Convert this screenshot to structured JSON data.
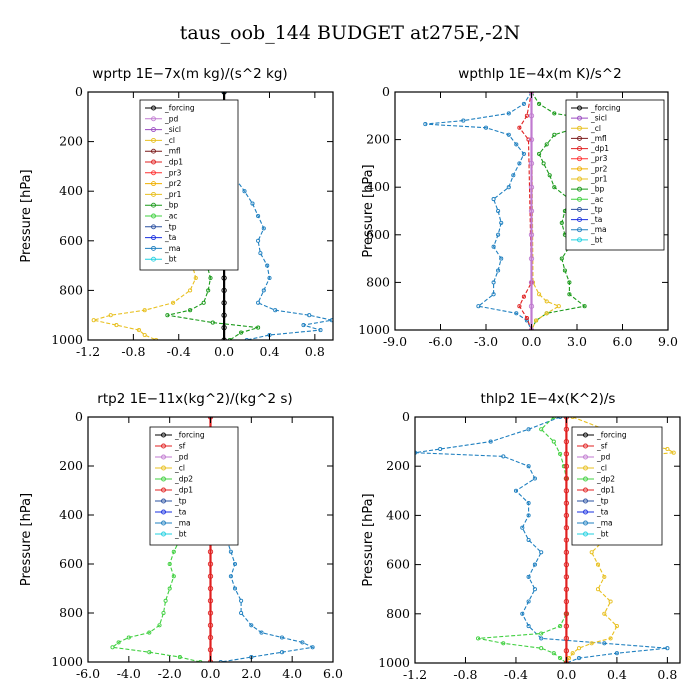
{
  "page_title": "taus_oob_144  BUDGET at275E,-2N",
  "chart_data": [
    {
      "type": "line",
      "title": "wprtp   1E−7x(m kg)/(s^2 kg)",
      "ylabel": "Pressure [hPa]",
      "xlim": [
        -1.2,
        0.96
      ],
      "ylim": [
        1000,
        0
      ],
      "xticks": [
        "-1.2",
        "-0.8",
        "-0.4",
        "0.0",
        "0.4",
        "0.8"
      ],
      "xtick_values": [
        -1.2,
        -0.8,
        -0.4,
        0.0,
        0.4,
        0.8
      ],
      "yticks": [
        "0",
        "200",
        "400",
        "600",
        "800",
        "1000"
      ],
      "ytick_values": [
        0,
        200,
        400,
        600,
        800,
        1000
      ],
      "legend": [
        "_forcing",
        "_pd",
        "_sicl",
        "_cl",
        "_mfl",
        "_dp1",
        "_pr3",
        "_pr2",
        "_pr1",
        "_bp",
        "_ac",
        "_tp",
        "_ta",
        "_ma",
        "_bt"
      ],
      "series": [
        {
          "name": "_pr1",
          "color": "#e8c020",
          "y": [
            0,
            150,
            250,
            300,
            350,
            400,
            450,
            500,
            550,
            600,
            650,
            700,
            750,
            800,
            850,
            880,
            900,
            920,
            940,
            960,
            980,
            1000
          ],
          "x": [
            0,
            0,
            -0.02,
            -0.05,
            -0.1,
            -0.15,
            -0.2,
            -0.17,
            -0.2,
            -0.25,
            -0.22,
            -0.28,
            -0.25,
            -0.3,
            -0.45,
            -0.7,
            -1.0,
            -1.15,
            -0.95,
            -0.75,
            -0.7,
            -0.6
          ]
        },
        {
          "name": "_bp",
          "color": "#1a9a1a",
          "y": [
            0,
            200,
            300,
            350,
            400,
            450,
            500,
            550,
            600,
            650,
            700,
            750,
            800,
            850,
            880,
            900,
            930,
            950,
            970,
            1000
          ],
          "x": [
            0,
            0,
            -0.02,
            -0.05,
            -0.12,
            -0.18,
            -0.12,
            -0.1,
            -0.15,
            -0.12,
            -0.15,
            -0.12,
            -0.14,
            -0.18,
            -0.3,
            -0.5,
            -0.1,
            0.3,
            0.15,
            0.05
          ]
        },
        {
          "name": "_ma",
          "color": "#2080c0",
          "y": [
            0,
            200,
            300,
            350,
            400,
            450,
            500,
            550,
            600,
            650,
            700,
            750,
            800,
            850,
            880,
            900,
            920,
            940,
            960,
            980,
            1000
          ],
          "x": [
            0,
            0,
            0.02,
            0.1,
            0.18,
            0.25,
            0.3,
            0.35,
            0.3,
            0.32,
            0.38,
            0.4,
            0.35,
            0.3,
            0.45,
            0.75,
            0.95,
            0.7,
            0.85,
            0.4,
            0.2
          ]
        },
        {
          "name": "_forcing",
          "color": "#000000",
          "y": [
            0,
            50,
            100,
            150,
            200,
            250,
            300,
            350,
            400,
            450,
            500,
            550,
            600,
            650,
            700,
            750,
            800,
            850,
            900,
            950,
            1000
          ],
          "x": [
            0,
            0,
            0,
            0,
            0,
            0,
            0,
            0,
            0,
            0,
            0,
            0,
            0,
            0,
            0,
            0,
            0,
            0,
            0,
            0,
            0
          ]
        }
      ]
    },
    {
      "type": "line",
      "title": "wpthlp   1E−4x(m K)/s^2",
      "ylabel": "Pressure [hPa]",
      "xlim": [
        -9.0,
        9.0
      ],
      "ylim": [
        1000,
        0
      ],
      "xticks": [
        "-9.0",
        "-6.0",
        "-3.0",
        "0.0",
        "3.0",
        "6.0",
        "9.0"
      ],
      "xtick_values": [
        -9,
        -6,
        -3,
        0,
        3,
        6,
        9
      ],
      "yticks": [
        "0",
        "200",
        "400",
        "600",
        "800",
        "1000"
      ],
      "ytick_values": [
        0,
        200,
        400,
        600,
        800,
        1000
      ],
      "legend": [
        "_forcing",
        "_sicl",
        "_cl",
        "_mfl",
        "_dp1",
        "_pr3",
        "_pr2",
        "_pr1",
        "_bp",
        "_ac",
        "_tp",
        "_ta",
        "_ma",
        "_bt"
      ],
      "series": [
        {
          "name": "_bp",
          "color": "#1a9a1a",
          "y": [
            0,
            50,
            90,
            120,
            135,
            150,
            180,
            220,
            260,
            300,
            350,
            400,
            450,
            500,
            550,
            600,
            650,
            700,
            750,
            800,
            850,
            900,
            930,
            960,
            1000
          ],
          "x": [
            0,
            0.5,
            1.5,
            4.5,
            7.5,
            3.0,
            1.5,
            1.0,
            0.5,
            0.8,
            1.2,
            1.5,
            2.5,
            2.2,
            2.0,
            2.2,
            2.5,
            2.0,
            2.2,
            2.5,
            2.5,
            3.5,
            1.0,
            0.3,
            0
          ]
        },
        {
          "name": "_ma",
          "color": "#2080c0",
          "y": [
            0,
            50,
            90,
            120,
            135,
            150,
            180,
            220,
            260,
            300,
            350,
            400,
            450,
            500,
            550,
            600,
            650,
            700,
            750,
            800,
            850,
            900,
            930,
            960,
            1000
          ],
          "x": [
            0,
            -0.5,
            -1.5,
            -4.5,
            -7.0,
            -3.0,
            -1.5,
            -1.0,
            -0.5,
            -0.8,
            -1.2,
            -1.5,
            -2.5,
            -2.2,
            -2.0,
            -2.2,
            -2.5,
            -2.0,
            -2.2,
            -2.5,
            -2.5,
            -3.5,
            -1.0,
            -0.3,
            0
          ]
        },
        {
          "name": "_pr1",
          "color": "#e8c020",
          "y": [
            0,
            800,
            850,
            880,
            900,
            930,
            960,
            1000
          ],
          "x": [
            0,
            0.1,
            0.5,
            1.0,
            1.8,
            1.0,
            0.3,
            0
          ]
        },
        {
          "name": "_dp1",
          "color": "#e02020",
          "y": [
            0,
            100,
            150,
            200,
            800,
            860,
            900,
            950,
            1000
          ],
          "x": [
            0,
            -0.3,
            -0.8,
            -0.2,
            0,
            -0.5,
            -0.8,
            -0.3,
            0
          ]
        },
        {
          "name": "_forcing",
          "color": "#c07ad0",
          "y": [
            0,
            100,
            200,
            300,
            400,
            500,
            600,
            700,
            800,
            900,
            1000
          ],
          "x": [
            0,
            0,
            0,
            0,
            0,
            0,
            0,
            0,
            0,
            0,
            0
          ]
        }
      ]
    },
    {
      "type": "line",
      "title": "rtp2   1E−11x(kg^2)/(kg^2 s)",
      "ylabel": "Pressure [hPa]",
      "xlim": [
        -6.0,
        6.0
      ],
      "ylim": [
        1000,
        0
      ],
      "xticks": [
        "-6.0",
        "-4.0",
        "-2.0",
        "0.0",
        "2.0",
        "4.0",
        "6.0"
      ],
      "xtick_values": [
        -6,
        -4,
        -2,
        0,
        2,
        4,
        6
      ],
      "yticks": [
        "0",
        "200",
        "400",
        "600",
        "800",
        "1000"
      ],
      "ytick_values": [
        0,
        200,
        400,
        600,
        800,
        1000
      ],
      "legend": [
        "_forcing",
        "_sf",
        "_pd",
        "_cl",
        "_dp2",
        "_dp1",
        "_tp",
        "_ta",
        "_ma",
        "_bt"
      ],
      "series": [
        {
          "name": "_dp1",
          "color": "#40d040",
          "y": [
            0,
            300,
            350,
            400,
            450,
            500,
            550,
            600,
            650,
            700,
            750,
            800,
            850,
            880,
            900,
            920,
            940,
            960,
            980,
            1000
          ],
          "x": [
            0,
            0,
            -0.3,
            -0.8,
            -1.2,
            -1.5,
            -1.8,
            -2.0,
            -1.8,
            -2.0,
            -2.2,
            -2.3,
            -2.5,
            -3.0,
            -4.0,
            -4.5,
            -4.8,
            -3.0,
            -1.5,
            -0.5
          ]
        },
        {
          "name": "_ma",
          "color": "#2080c0",
          "y": [
            0,
            300,
            350,
            400,
            450,
            500,
            550,
            600,
            650,
            700,
            750,
            800,
            850,
            880,
            900,
            920,
            940,
            960,
            980,
            1000
          ],
          "x": [
            0,
            0,
            0.3,
            0.5,
            0.6,
            0.8,
            1.0,
            1.2,
            1.0,
            1.2,
            1.5,
            1.5,
            2.0,
            2.5,
            3.5,
            4.5,
            5.0,
            3.5,
            2.0,
            0.5
          ]
        },
        {
          "name": "_forcing",
          "color": "#e02020",
          "y": [
            0,
            50,
            100,
            150,
            200,
            250,
            300,
            350,
            400,
            450,
            500,
            550,
            600,
            650,
            700,
            750,
            800,
            850,
            900,
            950,
            1000
          ],
          "x": [
            0,
            0,
            0,
            0,
            0,
            0,
            0,
            0,
            0,
            0,
            0,
            0,
            0,
            0,
            0,
            0,
            0,
            0,
            0,
            0,
            0
          ]
        }
      ]
    },
    {
      "type": "line",
      "title": "thlp2   1E−4x(K^2)/s",
      "ylabel": "Pressure [hPa]",
      "xlim": [
        -1.2,
        0.9
      ],
      "ylim": [
        1000,
        0
      ],
      "xticks": [
        "-1.2",
        "-0.8",
        "-0.4",
        "0.0",
        "0.4",
        "0.8"
      ],
      "xtick_values": [
        -1.2,
        -0.8,
        -0.4,
        0.0,
        0.4,
        0.8
      ],
      "yticks": [
        "0",
        "200",
        "400",
        "600",
        "800",
        "1000"
      ],
      "ytick_values": [
        0,
        200,
        400,
        600,
        800,
        1000
      ],
      "legend": [
        "_forcing",
        "_sf",
        "_pd",
        "_cl",
        "_dp2",
        "_dp1",
        "_tp",
        "_ta",
        "_ma",
        "_bt"
      ],
      "series": [
        {
          "name": "_ma",
          "color": "#2080c0",
          "y": [
            0,
            50,
            100,
            130,
            145,
            160,
            200,
            250,
            300,
            350,
            400,
            450,
            500,
            550,
            600,
            650,
            700,
            750,
            800,
            850,
            900,
            920,
            940,
            960,
            980,
            1000
          ],
          "x": [
            -0.05,
            -0.3,
            -0.6,
            -1.0,
            -1.2,
            -0.5,
            -0.3,
            -0.25,
            -0.4,
            -0.3,
            -0.3,
            -0.35,
            -0.3,
            -0.2,
            -0.25,
            -0.3,
            -0.25,
            -0.3,
            -0.35,
            -0.3,
            -0.2,
            0.3,
            0.8,
            0.4,
            0.1,
            0
          ]
        },
        {
          "name": "_cl",
          "color": "#e8c020",
          "y": [
            0,
            50,
            100,
            130,
            145,
            160,
            200,
            250,
            300,
            350,
            400,
            450,
            500,
            550,
            600,
            650,
            700,
            750,
            800,
            850,
            900,
            920,
            940,
            960,
            980,
            1000
          ],
          "x": [
            0.05,
            0.3,
            0.5,
            0.8,
            0.85,
            0.5,
            0.3,
            0.2,
            0.1,
            0.15,
            0.2,
            0.25,
            0.3,
            0.2,
            0.25,
            0.3,
            0.25,
            0.35,
            0.3,
            0.4,
            0.35,
            0.2,
            0.1,
            0.05,
            0.02,
            0
          ]
        },
        {
          "name": "_dp1",
          "color": "#40d040",
          "y": [
            0,
            50,
            100,
            150,
            200,
            250,
            800,
            850,
            880,
            900,
            920,
            940,
            960,
            980,
            1000
          ],
          "x": [
            -0.1,
            -0.2,
            -0.1,
            -0.05,
            -0.02,
            0,
            0,
            -0.05,
            -0.2,
            -0.7,
            -0.5,
            -0.2,
            -0.1,
            -0.05,
            0
          ]
        },
        {
          "name": "_forcing",
          "color": "#e02020",
          "y": [
            0,
            50,
            100,
            150,
            200,
            250,
            300,
            350,
            400,
            450,
            500,
            550,
            600,
            650,
            700,
            750,
            800,
            850,
            900,
            950,
            1000
          ],
          "x": [
            0,
            0,
            0,
            0,
            0,
            0,
            0,
            0,
            0,
            0,
            0,
            0,
            0,
            0,
            0,
            0,
            0,
            0,
            0,
            0,
            0
          ]
        }
      ]
    }
  ]
}
